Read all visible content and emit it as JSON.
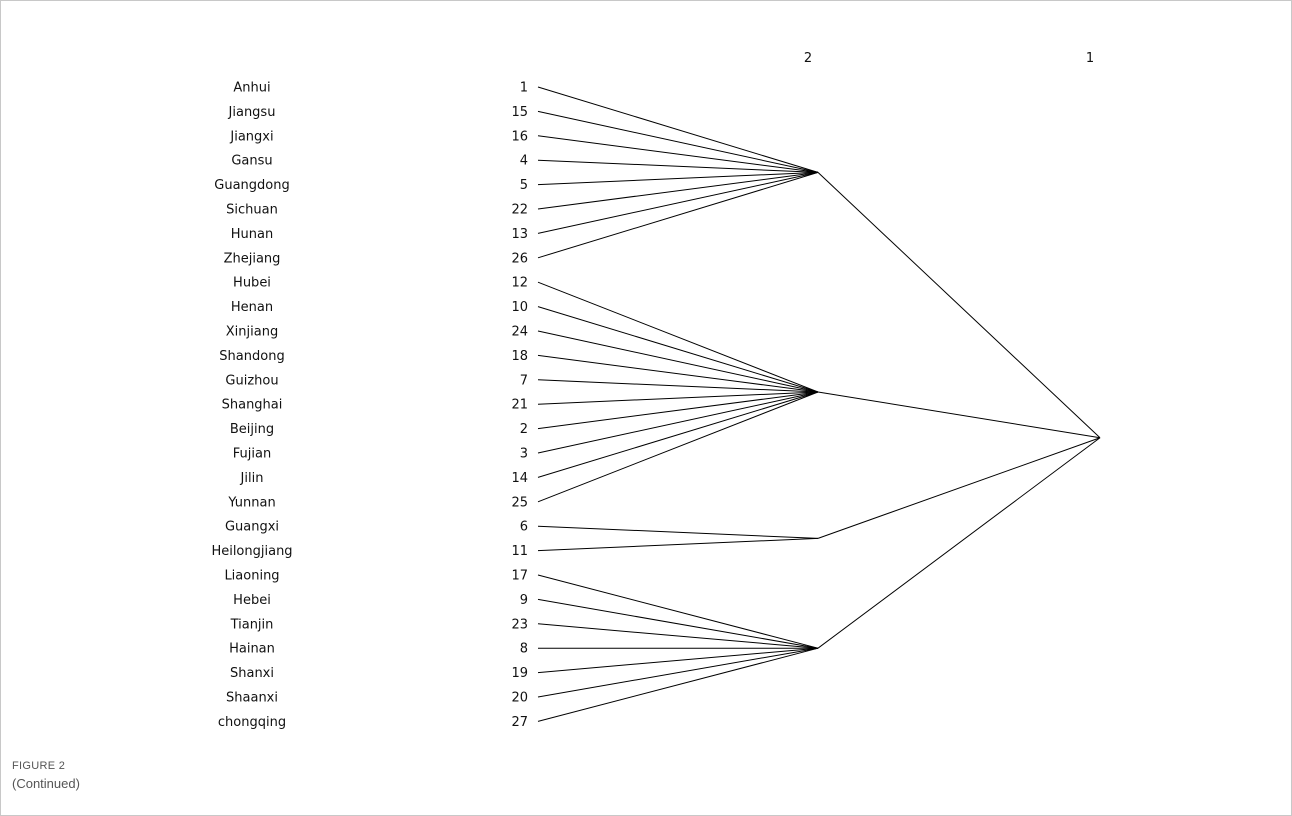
{
  "figure": {
    "label": "FIGURE 2",
    "note": "(Continued)"
  },
  "level_headers": [
    "2",
    "1"
  ],
  "leaves": [
    {
      "name": "Anhui",
      "id": "1",
      "cluster": 0
    },
    {
      "name": "Jiangsu",
      "id": "15",
      "cluster": 0
    },
    {
      "name": "Jiangxi",
      "id": "16",
      "cluster": 0
    },
    {
      "name": "Gansu",
      "id": "4",
      "cluster": 0
    },
    {
      "name": "Guangdong",
      "id": "5",
      "cluster": 0
    },
    {
      "name": "Sichuan",
      "id": "22",
      "cluster": 0
    },
    {
      "name": "Hunan",
      "id": "13",
      "cluster": 0
    },
    {
      "name": "Zhejiang",
      "id": "26",
      "cluster": 0
    },
    {
      "name": "Hubei",
      "id": "12",
      "cluster": 1
    },
    {
      "name": "Henan",
      "id": "10",
      "cluster": 1
    },
    {
      "name": "Xinjiang",
      "id": "24",
      "cluster": 1
    },
    {
      "name": "Shandong",
      "id": "18",
      "cluster": 1
    },
    {
      "name": "Guizhou",
      "id": "7",
      "cluster": 1
    },
    {
      "name": "Shanghai",
      "id": "21",
      "cluster": 1
    },
    {
      "name": "Beijing",
      "id": "2",
      "cluster": 1
    },
    {
      "name": "Fujian",
      "id": "3",
      "cluster": 1
    },
    {
      "name": "Jilin",
      "id": "14",
      "cluster": 1
    },
    {
      "name": "Yunnan",
      "id": "25",
      "cluster": 1
    },
    {
      "name": "Guangxi",
      "id": "6",
      "cluster": 2
    },
    {
      "name": "Heilongjiang",
      "id": "11",
      "cluster": 2
    },
    {
      "name": "Liaoning",
      "id": "17",
      "cluster": 3
    },
    {
      "name": "Hebei",
      "id": "9",
      "cluster": 3
    },
    {
      "name": "Tianjin",
      "id": "23",
      "cluster": 3
    },
    {
      "name": "Hainan",
      "id": "8",
      "cluster": 3
    },
    {
      "name": "Shanxi",
      "id": "19",
      "cluster": 3
    },
    {
      "name": "Shaanxi",
      "id": "20",
      "cluster": 3
    },
    {
      "name": "chongqing",
      "id": "27",
      "cluster": 3
    }
  ]
}
